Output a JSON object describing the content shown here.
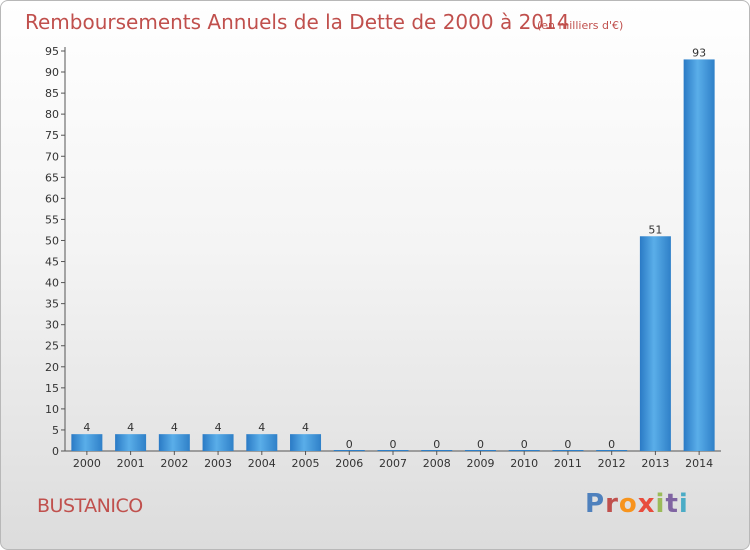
{
  "chart_data": {
    "type": "bar",
    "title": "Remboursements Annuels de la Dette de 2000 à 2014",
    "subtitle": "(en milliers d'€)",
    "categories": [
      "2000",
      "2001",
      "2002",
      "2003",
      "2004",
      "2005",
      "2006",
      "2007",
      "2008",
      "2009",
      "2010",
      "2011",
      "2012",
      "2013",
      "2014"
    ],
    "values": [
      4,
      4,
      4,
      4,
      4,
      4,
      0,
      0,
      0,
      0,
      0,
      0,
      0,
      51,
      93
    ],
    "ylim": [
      0,
      95
    ],
    "yticks": [
      0,
      5,
      10,
      15,
      20,
      25,
      30,
      35,
      40,
      45,
      50,
      55,
      60,
      65,
      70,
      75,
      80,
      85,
      90,
      95
    ],
    "grid": false,
    "bar_color": "#3b8fd6"
  },
  "footer": {
    "commune": "BUSTANICO",
    "logo_text": "Proxiti",
    "logo_colors": [
      "#4f81bd",
      "#c0504d",
      "#f7941d",
      "#e84c3d",
      "#9bbb59",
      "#8064a2",
      "#4bacc6"
    ]
  }
}
